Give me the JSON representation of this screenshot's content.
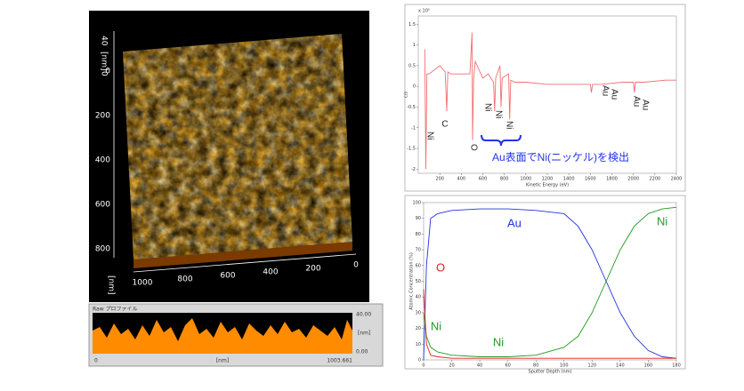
{
  "afm": {
    "z_ticks": [
      40,
      0
    ],
    "z_unit": "[nm]",
    "y_ticks": [
      0,
      200,
      400,
      600,
      800
    ],
    "x_ticks": [
      1000,
      800,
      600,
      400,
      200,
      0
    ],
    "x_unit": "[nm]"
  },
  "profile": {
    "title": "Raw プロファイル",
    "y_max": "40.00",
    "y_unit": "[nm]",
    "y_min": "0.00",
    "x_min": "0",
    "x_unit": "[nm]",
    "x_max": "1003.661"
  },
  "chart_data": [
    {
      "type": "line",
      "x_label": "Kinetic Energy (eV)",
      "y_label": "c/s",
      "y_note": "x 10⁵",
      "x": [
        60,
        70,
        80,
        100,
        150,
        200,
        250,
        265,
        275,
        300,
        400,
        480,
        500,
        505,
        515,
        530,
        600,
        650,
        700,
        710,
        720,
        760,
        770,
        780,
        840,
        850,
        860,
        900,
        1000,
        1200,
        1400,
        1600,
        1610,
        1620,
        1700,
        1900,
        2000,
        2010,
        2020,
        2100,
        2300,
        2400
      ],
      "series": [
        {
          "color": "#f07070",
          "values": [
            0.9,
            -2,
            0.3,
            0.3,
            0.4,
            0.5,
            0.35,
            -0.6,
            0.35,
            0.3,
            0.3,
            0.3,
            1.3,
            -1.3,
            0.2,
            0.6,
            0.2,
            0.3,
            0.1,
            -0.6,
            0.2,
            0.5,
            -0.5,
            0.2,
            0.3,
            -0.8,
            0.15,
            0.1,
            0.1,
            0.05,
            0.05,
            0.05,
            -0.15,
            0.05,
            0.05,
            0.1,
            0.1,
            -0.15,
            0.1,
            0.1,
            0.15,
            0.15
          ]
        }
      ],
      "xlim": [
        0,
        2400
      ],
      "xticks": [
        200,
        400,
        600,
        800,
        1000,
        1200,
        1400,
        1600,
        1800,
        2000,
        2200,
        2400
      ],
      "ylim": [
        -2.1,
        1.7
      ],
      "yticks": [
        1.5,
        1,
        0.5,
        0,
        -0.5,
        -1,
        -1.5,
        -2
      ],
      "annotations": [
        "C",
        "Ni",
        "O",
        "Ni",
        "Ni",
        "Ni",
        "Au",
        "Au",
        "Au",
        "Au",
        "Au表面でNi(ニッケル)を検出"
      ]
    },
    {
      "type": "line",
      "x_label": "Sputter Depth (nm)",
      "y_label": "Atomic Concentration (%)",
      "x": [
        0,
        2,
        5,
        10,
        20,
        40,
        60,
        80,
        100,
        110,
        120,
        130,
        140,
        150,
        160,
        170,
        180
      ],
      "series": [
        {
          "name": "Au",
          "color": "#2233dd",
          "values": [
            0,
            60,
            90,
            93,
            95,
            96,
            96,
            95,
            93,
            85,
            70,
            50,
            30,
            15,
            6,
            2,
            1
          ]
        },
        {
          "name": "Ni",
          "color": "#229922",
          "values": [
            30,
            15,
            8,
            5,
            3,
            2,
            2,
            3,
            8,
            15,
            30,
            50,
            70,
            85,
            93,
            96,
            97
          ]
        },
        {
          "name": "O",
          "color": "#e02020",
          "values": [
            45,
            10,
            3,
            2,
            1,
            1,
            1,
            1,
            1,
            1,
            1,
            1,
            1,
            1,
            1,
            1,
            1
          ]
        }
      ],
      "xlim": [
        0,
        180
      ],
      "xticks": [
        0,
        20,
        40,
        60,
        80,
        100,
        120,
        140,
        160,
        180
      ],
      "ylim": [
        0,
        100
      ],
      "yticks": [
        0,
        10,
        20,
        30,
        40,
        50,
        60,
        70,
        80,
        90,
        100
      ],
      "annotations": [
        "Ni",
        "Ni"
      ]
    }
  ]
}
